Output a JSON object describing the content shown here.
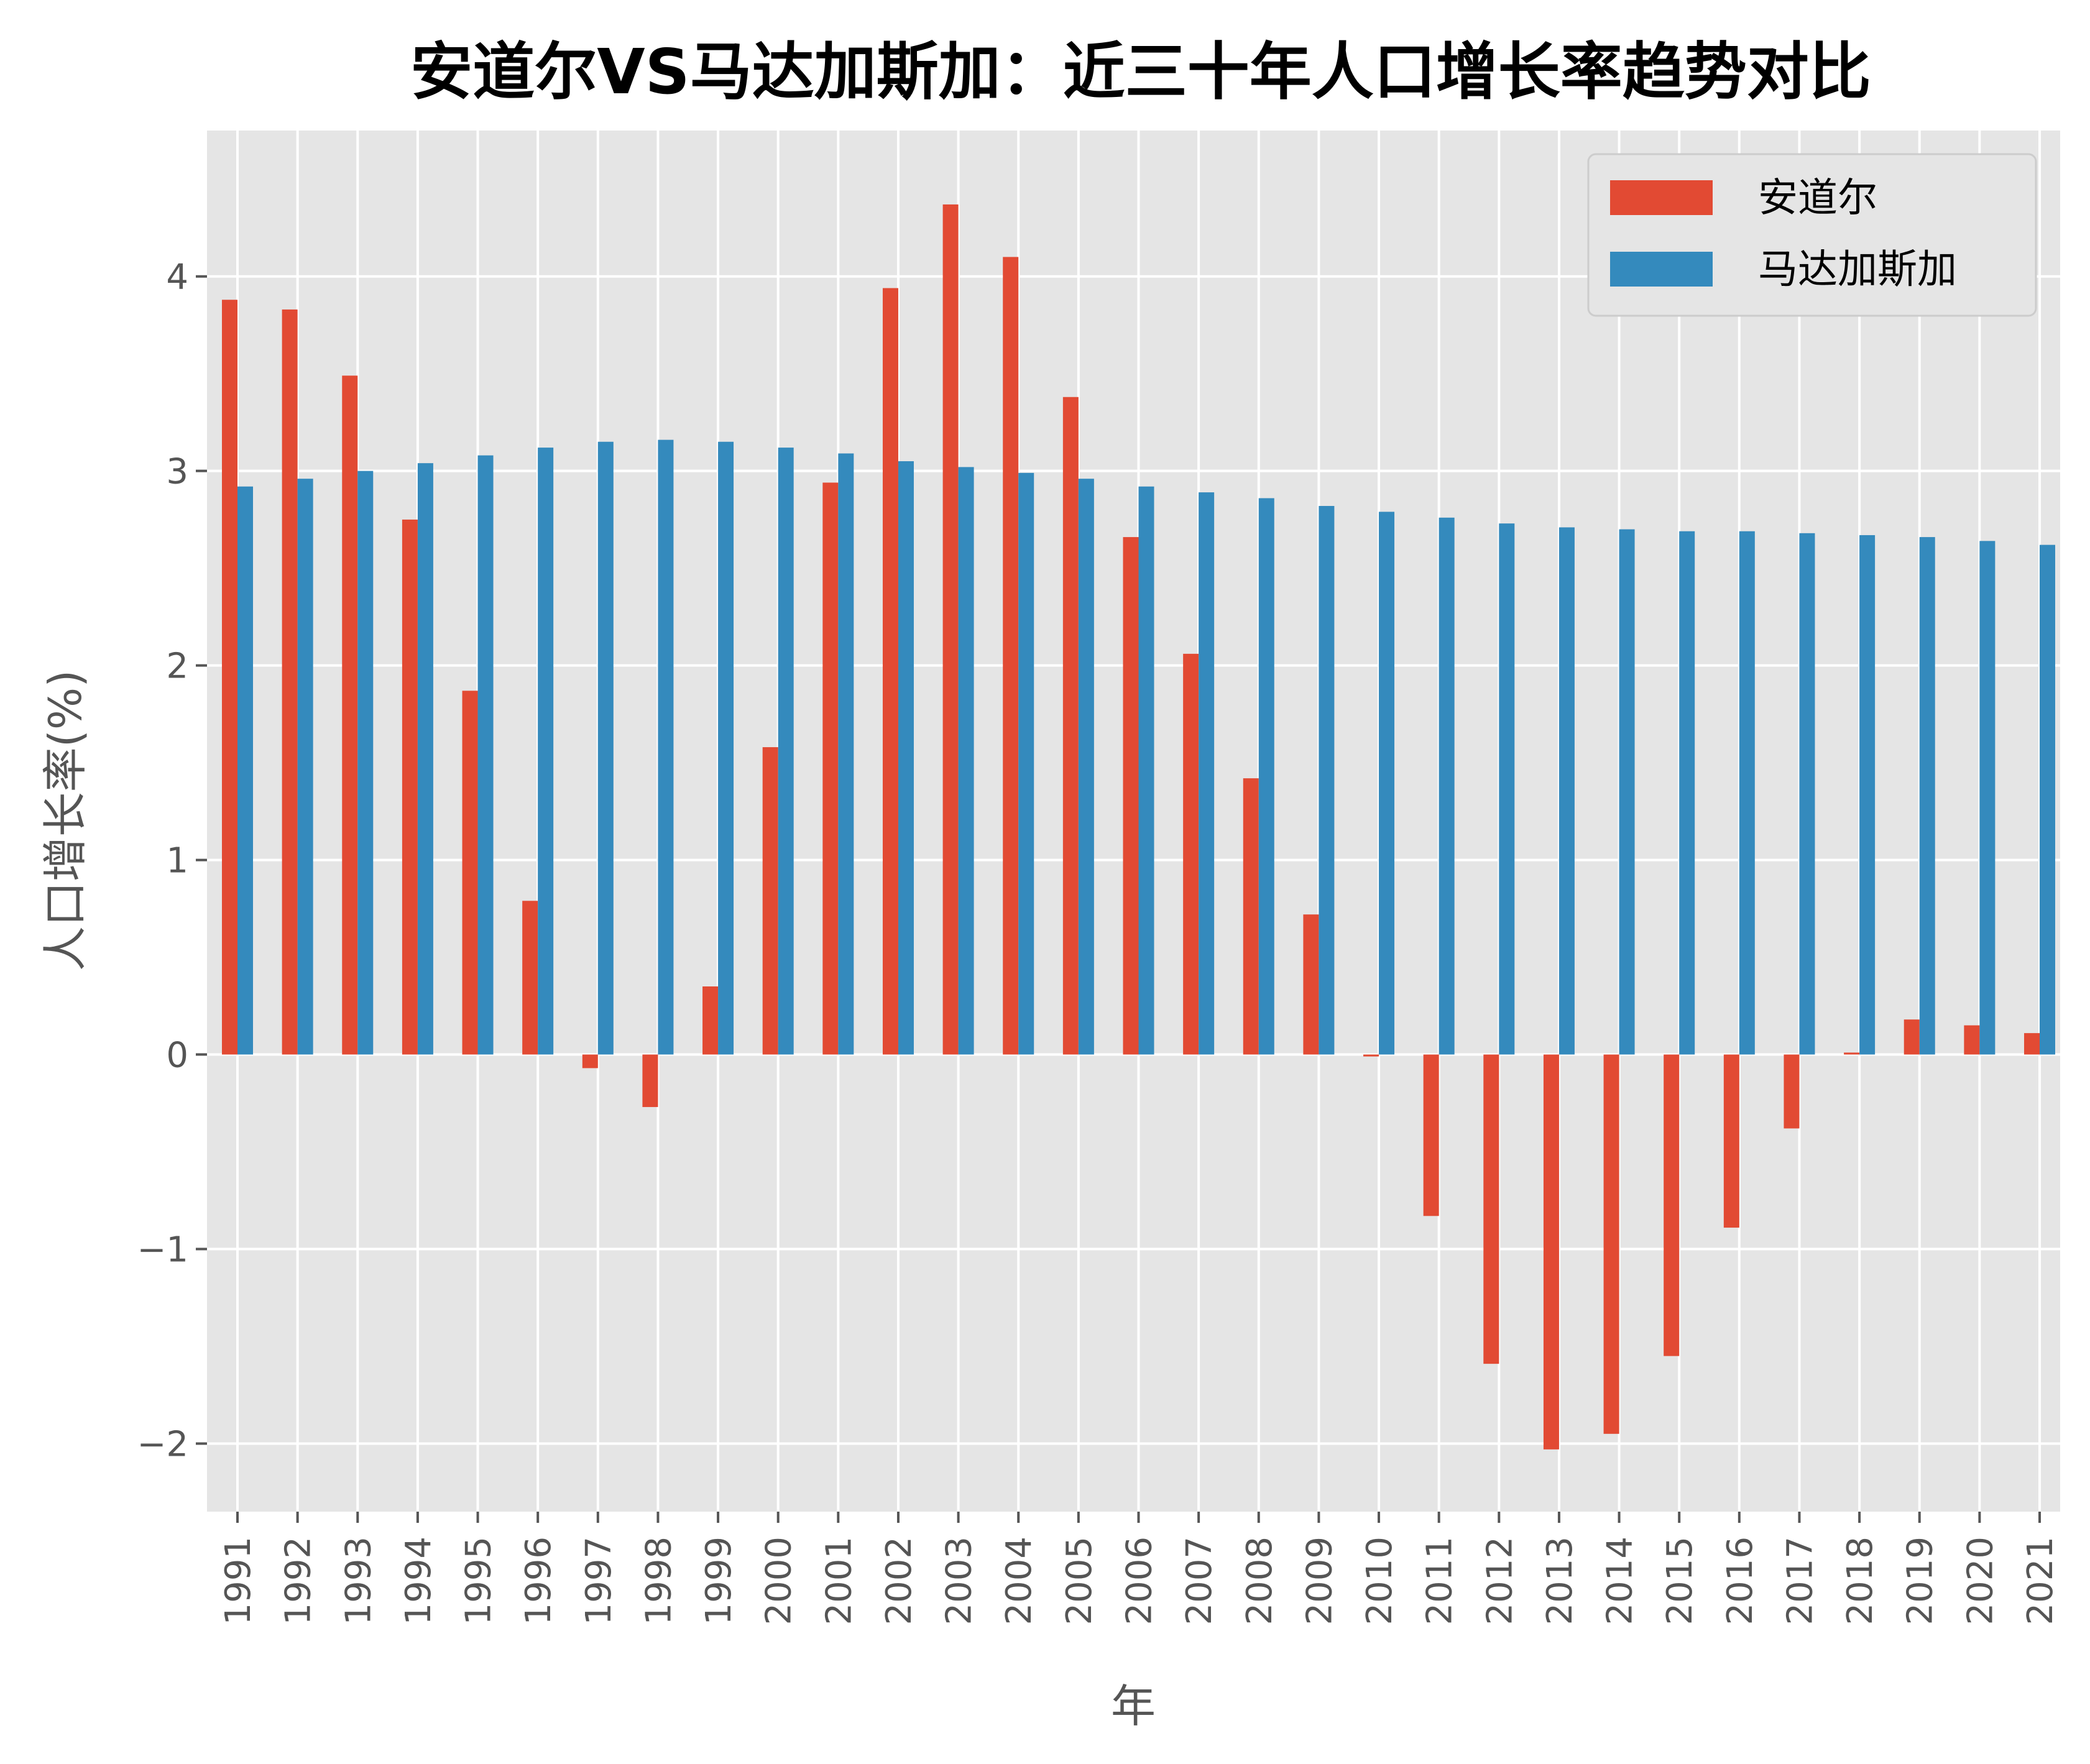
{
  "chart_data": {
    "type": "bar",
    "title": "安道尔VS马达加斯加：近三十年人口增长率趋势对比",
    "xlabel": "年",
    "ylabel": "人口增长率(%)",
    "ylim": [
      -2.35,
      4.75
    ],
    "yticks": [
      -2,
      -1,
      0,
      1,
      2,
      3,
      4
    ],
    "ytick_labels": [
      "−2",
      "−1",
      "0",
      "1",
      "2",
      "3",
      "4"
    ],
    "grid": true,
    "legend_position": "top-right",
    "categories": [
      "1991",
      "1992",
      "1993",
      "1994",
      "1995",
      "1996",
      "1997",
      "1998",
      "1999",
      "2000",
      "2001",
      "2002",
      "2003",
      "2004",
      "2005",
      "2006",
      "2007",
      "2008",
      "2009",
      "2010",
      "2011",
      "2012",
      "2013",
      "2014",
      "2015",
      "2016",
      "2017",
      "2018",
      "2019",
      "2020",
      "2021"
    ],
    "series": [
      {
        "name": "安道尔",
        "color": "#E24A33",
        "values": [
          3.88,
          3.83,
          3.49,
          2.75,
          1.87,
          0.79,
          -0.07,
          -0.27,
          0.35,
          1.58,
          2.94,
          3.94,
          4.37,
          4.1,
          3.38,
          2.66,
          2.06,
          1.42,
          0.72,
          -0.01,
          -0.83,
          -1.59,
          -2.03,
          -1.95,
          -1.55,
          -0.89,
          -0.38,
          0.01,
          0.18,
          0.15,
          0.11
        ]
      },
      {
        "name": "马达加斯加",
        "color": "#348ABD",
        "values": [
          2.92,
          2.96,
          3.0,
          3.04,
          3.08,
          3.12,
          3.15,
          3.16,
          3.15,
          3.12,
          3.09,
          3.05,
          3.02,
          2.99,
          2.96,
          2.92,
          2.89,
          2.86,
          2.82,
          2.79,
          2.76,
          2.73,
          2.71,
          2.7,
          2.69,
          2.69,
          2.68,
          2.67,
          2.66,
          2.64,
          2.62
        ]
      }
    ],
    "colors": {
      "plot_background": "#E5E5E5",
      "grid": "#FFFFFF"
    }
  }
}
